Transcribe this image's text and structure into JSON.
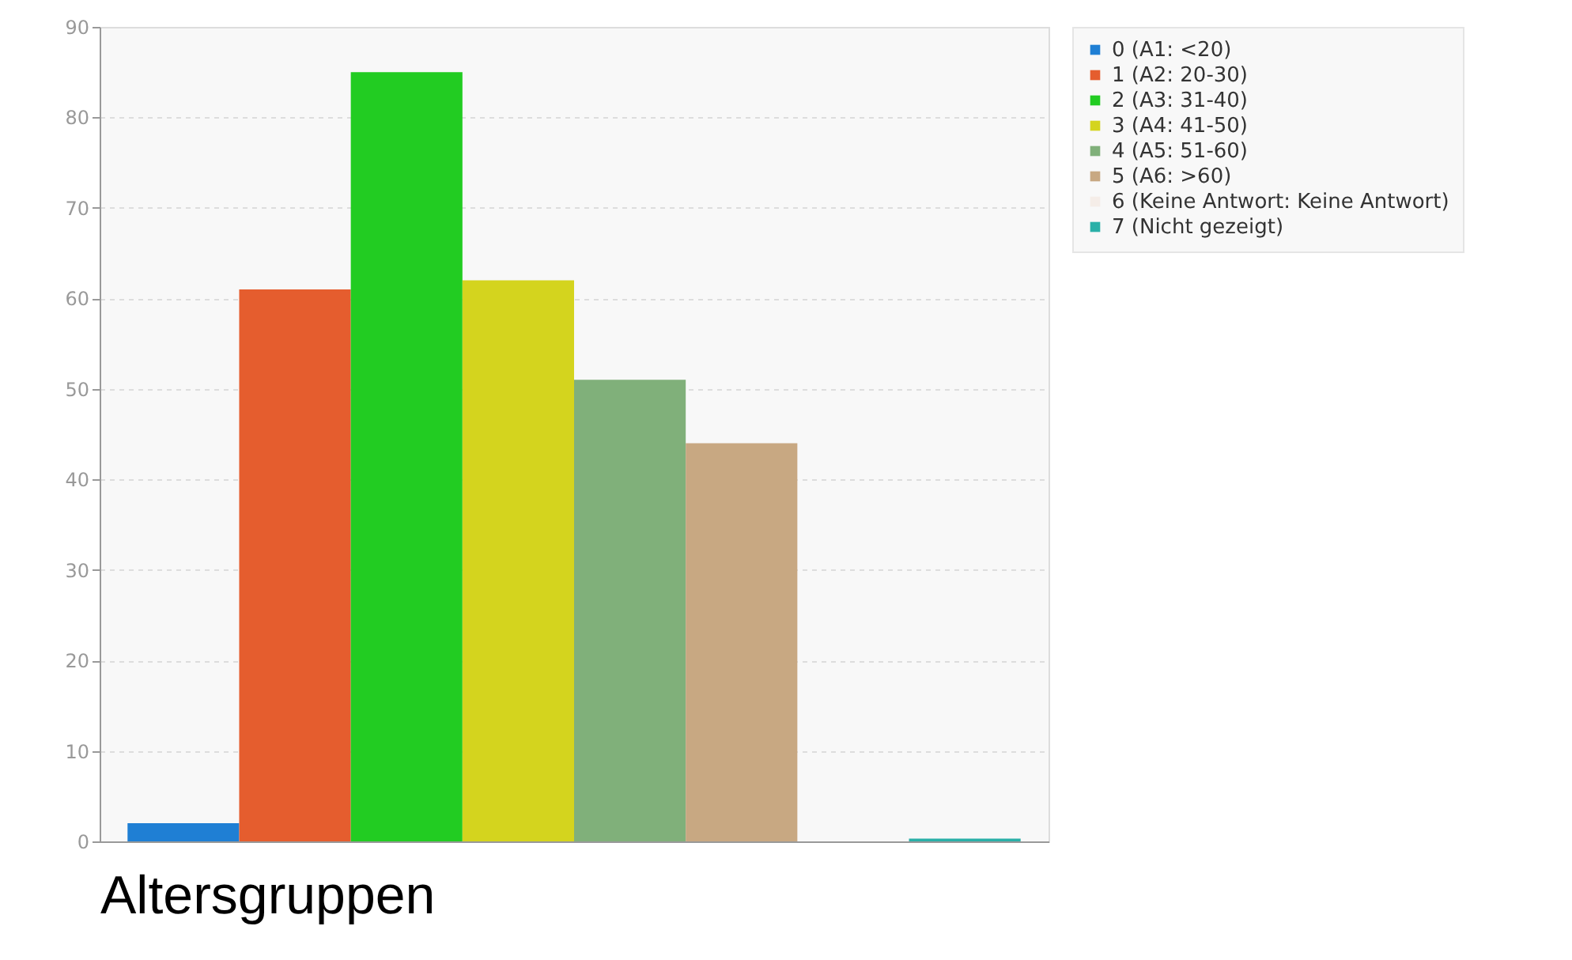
{
  "chart_data": {
    "type": "bar",
    "xlabel": "Altersgruppen",
    "categories": [
      null,
      null,
      null,
      null,
      null,
      null,
      null,
      null
    ],
    "series": [
      {
        "name": "0 (A1: <20)",
        "color": "#1f7fd4",
        "values": [
          2,
          null,
          null,
          null,
          null,
          null,
          null,
          null
        ]
      },
      {
        "name": "1 (A2: 20-30)",
        "color": "#e55d2e",
        "values": [
          null,
          61,
          null,
          null,
          null,
          null,
          null,
          null
        ]
      },
      {
        "name": "2 (A3: 31-40)",
        "color": "#22cc22",
        "values": [
          null,
          null,
          85,
          null,
          null,
          null,
          null,
          null
        ]
      },
      {
        "name": "3 (A4: 41-50)",
        "color": "#d4d41e",
        "values": [
          null,
          null,
          null,
          62,
          null,
          null,
          null,
          null
        ]
      },
      {
        "name": "4 (A5: 51-60)",
        "color": "#80b07a",
        "values": [
          null,
          null,
          null,
          null,
          51,
          null,
          null,
          null
        ]
      },
      {
        "name": "5 (A6: >60)",
        "color": "#c8a882",
        "values": [
          null,
          null,
          null,
          null,
          null,
          44,
          null,
          null
        ]
      },
      {
        "name": "6 (Keine Antwort: Keine Antwort)",
        "color": "#f5ede8",
        "values": [
          null,
          null,
          null,
          null,
          null,
          null,
          0,
          null
        ]
      },
      {
        "name": "7 (Nicht gezeigt)",
        "color": "#2ab0a8",
        "values": [
          null,
          null,
          null,
          null,
          null,
          null,
          null,
          0.3
        ]
      }
    ],
    "ylim": [
      0,
      90
    ],
    "yticks": [
      0,
      10,
      20,
      30,
      40,
      50,
      60,
      70,
      80,
      90
    ],
    "grid": "y",
    "legend": "top right"
  }
}
